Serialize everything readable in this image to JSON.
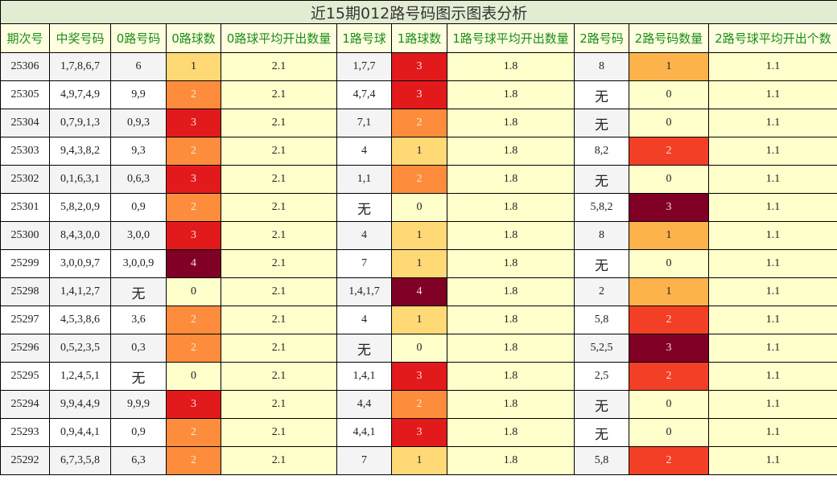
{
  "title": "近15期012路号码图示图表分析",
  "headers": [
    "期次号",
    "中奖号码",
    "0路号码",
    "0路球数",
    "0路球平均开出数量",
    "1路号球",
    "1路球数",
    "1路号球平均开出数量",
    "2路号码",
    "2路号码数量",
    "2路号球平均开出个数"
  ],
  "colors": {
    "title_bg": "#e2ecd2",
    "header_bg": "#ffffe0",
    "header_text": "#1a8c1a",
    "avg_bg": "#ffffcc",
    "count_0": "#ffffcc",
    "count_1": "#fed976",
    "count_2": "#fd8d3c",
    "count_3": "#e31a1c",
    "count_4": "#800026",
    "road2_count_1": "#feb24c",
    "road2_count_2": "#f33f25",
    "road2_count_3": "#800026"
  },
  "rows": [
    {
      "issue": "25306",
      "winning": "1,7,8,6,7",
      "r0": "6",
      "r0c": "1",
      "r0avg": "2.1",
      "r1": "1,7,7",
      "r1c": "3",
      "r1avg": "1.8",
      "r2": "8",
      "r2c": "1",
      "r2avg": "1.1"
    },
    {
      "issue": "25305",
      "winning": "4,9,7,4,9",
      "r0": "9,9",
      "r0c": "2",
      "r0avg": "2.1",
      "r1": "4,7,4",
      "r1c": "3",
      "r1avg": "1.8",
      "r2": "无",
      "r2c": "0",
      "r2avg": "1.1"
    },
    {
      "issue": "25304",
      "winning": "0,7,9,1,3",
      "r0": "0,9,3",
      "r0c": "3",
      "r0avg": "2.1",
      "r1": "7,1",
      "r1c": "2",
      "r1avg": "1.8",
      "r2": "无",
      "r2c": "0",
      "r2avg": "1.1"
    },
    {
      "issue": "25303",
      "winning": "9,4,3,8,2",
      "r0": "9,3",
      "r0c": "2",
      "r0avg": "2.1",
      "r1": "4",
      "r1c": "1",
      "r1avg": "1.8",
      "r2": "8,2",
      "r2c": "2",
      "r2avg": "1.1"
    },
    {
      "issue": "25302",
      "winning": "0,1,6,3,1",
      "r0": "0,6,3",
      "r0c": "3",
      "r0avg": "2.1",
      "r1": "1,1",
      "r1c": "2",
      "r1avg": "1.8",
      "r2": "无",
      "r2c": "0",
      "r2avg": "1.1"
    },
    {
      "issue": "25301",
      "winning": "5,8,2,0,9",
      "r0": "0,9",
      "r0c": "2",
      "r0avg": "2.1",
      "r1": "无",
      "r1c": "0",
      "r1avg": "1.8",
      "r2": "5,8,2",
      "r2c": "3",
      "r2avg": "1.1"
    },
    {
      "issue": "25300",
      "winning": "8,4,3,0,0",
      "r0": "3,0,0",
      "r0c": "3",
      "r0avg": "2.1",
      "r1": "4",
      "r1c": "1",
      "r1avg": "1.8",
      "r2": "8",
      "r2c": "1",
      "r2avg": "1.1"
    },
    {
      "issue": "25299",
      "winning": "3,0,0,9,7",
      "r0": "3,0,0,9",
      "r0c": "4",
      "r0avg": "2.1",
      "r1": "7",
      "r1c": "1",
      "r1avg": "1.8",
      "r2": "无",
      "r2c": "0",
      "r2avg": "1.1"
    },
    {
      "issue": "25298",
      "winning": "1,4,1,2,7",
      "r0": "无",
      "r0c": "0",
      "r0avg": "2.1",
      "r1": "1,4,1,7",
      "r1c": "4",
      "r1avg": "1.8",
      "r2": "2",
      "r2c": "1",
      "r2avg": "1.1"
    },
    {
      "issue": "25297",
      "winning": "4,5,3,8,6",
      "r0": "3,6",
      "r0c": "2",
      "r0avg": "2.1",
      "r1": "4",
      "r1c": "1",
      "r1avg": "1.8",
      "r2": "5,8",
      "r2c": "2",
      "r2avg": "1.1"
    },
    {
      "issue": "25296",
      "winning": "0,5,2,3,5",
      "r0": "0,3",
      "r0c": "2",
      "r0avg": "2.1",
      "r1": "无",
      "r1c": "0",
      "r1avg": "1.8",
      "r2": "5,2,5",
      "r2c": "3",
      "r2avg": "1.1"
    },
    {
      "issue": "25295",
      "winning": "1,2,4,5,1",
      "r0": "无",
      "r0c": "0",
      "r0avg": "2.1",
      "r1": "1,4,1",
      "r1c": "3",
      "r1avg": "1.8",
      "r2": "2,5",
      "r2c": "2",
      "r2avg": "1.1"
    },
    {
      "issue": "25294",
      "winning": "9,9,4,4,9",
      "r0": "9,9,9",
      "r0c": "3",
      "r0avg": "2.1",
      "r1": "4,4",
      "r1c": "2",
      "r1avg": "1.8",
      "r2": "无",
      "r2c": "0",
      "r2avg": "1.1"
    },
    {
      "issue": "25293",
      "winning": "0,9,4,4,1",
      "r0": "0,9",
      "r0c": "2",
      "r0avg": "2.1",
      "r1": "4,4,1",
      "r1c": "3",
      "r1avg": "1.8",
      "r2": "无",
      "r2c": "0",
      "r2avg": "1.1"
    },
    {
      "issue": "25292",
      "winning": "6,7,3,5,8",
      "r0": "6,3",
      "r0c": "2",
      "r0avg": "2.1",
      "r1": "7",
      "r1c": "1",
      "r1avg": "1.8",
      "r2": "5,8",
      "r2c": "2",
      "r2avg": "1.1"
    }
  ]
}
